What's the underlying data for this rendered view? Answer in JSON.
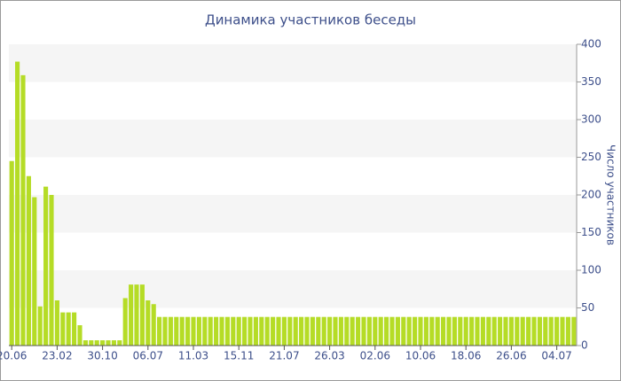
{
  "chart_data": {
    "type": "bar",
    "title": "Динамика участников беседы",
    "y_label": "Число участников",
    "y_axis_side": "right",
    "color": "#b5dc26",
    "grid": true,
    "ylim": [
      0,
      400
    ],
    "yticks": [
      0,
      50,
      100,
      150,
      200,
      250,
      300,
      350,
      400
    ],
    "categories": [
      "20.06",
      null,
      null,
      null,
      null,
      null,
      null,
      null,
      "23.02",
      null,
      null,
      null,
      null,
      null,
      null,
      null,
      "30.10",
      null,
      null,
      null,
      null,
      null,
      null,
      null,
      "06.07",
      null,
      null,
      null,
      null,
      null,
      null,
      null,
      "11.03",
      null,
      null,
      null,
      null,
      null,
      null,
      null,
      "15.11",
      null,
      null,
      null,
      null,
      null,
      null,
      null,
      "21.07",
      null,
      null,
      null,
      null,
      null,
      null,
      null,
      "26.03",
      null,
      null,
      null,
      null,
      null,
      null,
      null,
      "02.06",
      null,
      null,
      null,
      null,
      null,
      null,
      null,
      "10.06",
      null,
      null,
      null,
      null,
      null,
      null,
      null,
      "18.06",
      null,
      null,
      null,
      null,
      null,
      null,
      null,
      "26.06",
      null,
      null,
      null,
      null,
      null,
      null,
      null,
      "04.07",
      null,
      null,
      null
    ],
    "values": [
      245,
      377,
      359,
      225,
      197,
      52,
      211,
      200,
      60,
      44,
      44,
      44,
      27,
      7,
      7,
      7,
      7,
      7,
      7,
      7,
      63,
      81,
      81,
      81,
      60,
      55,
      38,
      38,
      38,
      38,
      38,
      38,
      38,
      38,
      38,
      38,
      38,
      38,
      38,
      38,
      38,
      38,
      38,
      38,
      38,
      38,
      38,
      38,
      38,
      38,
      38,
      38,
      38,
      38,
      38,
      38,
      38,
      38,
      38,
      38,
      38,
      38,
      38,
      38,
      38,
      38,
      38,
      38,
      38,
      38,
      38,
      38,
      38,
      38,
      38,
      38,
      38,
      38,
      38,
      38,
      38,
      38,
      38,
      38,
      38,
      38,
      38,
      38,
      38,
      38,
      38,
      38,
      38,
      38,
      38,
      38,
      38,
      38,
      38,
      38
    ]
  }
}
